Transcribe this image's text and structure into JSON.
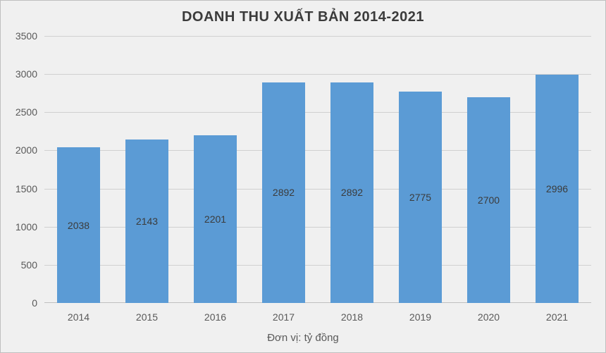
{
  "chart": {
    "type": "bar",
    "title": "DOANH THU XUẤT BẢN 2014-2021",
    "title_fontsize": 20,
    "title_color": "#3b3b3b",
    "x_axis_title": "Đơn vị: tỷ đồng",
    "categories": [
      "2014",
      "2015",
      "2016",
      "2017",
      "2018",
      "2019",
      "2020",
      "2021"
    ],
    "values": [
      2038,
      2143,
      2201,
      2892,
      2892,
      2775,
      2700,
      2996
    ],
    "ylim": [
      0,
      3500
    ],
    "ytick_step": 500,
    "yticks": [
      0,
      500,
      1000,
      1500,
      2000,
      2500,
      3000,
      3500
    ],
    "bar_color": "#5b9bd5",
    "bar_text_color": "#3b3b3b",
    "bar_width": 0.62,
    "background_color": "#f0f0f0",
    "gridline_color": "#d0d0d0",
    "axis_line_color": "#bfbfbf",
    "axis_text_color": "#595959",
    "border_color": "#bfbfbf",
    "label_fontsize": 14,
    "value_fontsize": 14,
    "axis_title_fontsize": 15
  }
}
